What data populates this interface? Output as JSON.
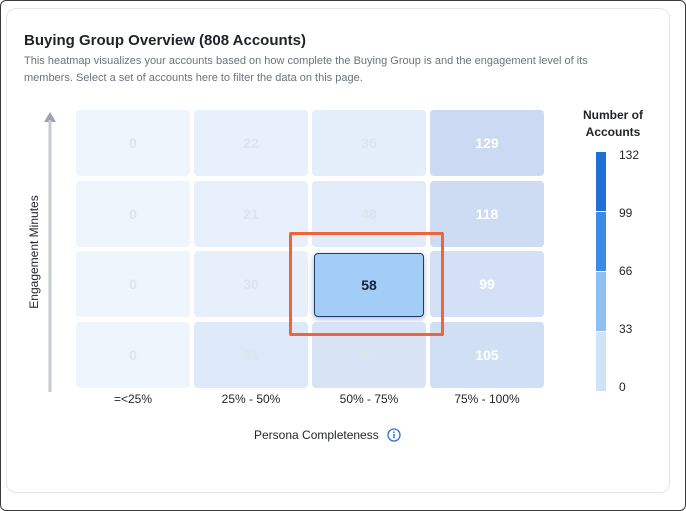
{
  "card": {
    "title": "Buying Group Overview (808 Accounts)",
    "description": "This heatmap visualizes your accounts based on how complete the Buying Group is and the engagement level of its members. Select a set of accounts here to filter the data on this page."
  },
  "chart_data": {
    "type": "heatmap",
    "xlabel": "Persona Completeness",
    "ylabel": "Engagement Minutes",
    "x_categories": [
      "=<25%",
      "25% - 50%",
      "50% - 75%",
      "75% - 100%"
    ],
    "rows": [
      [
        0,
        22,
        36,
        129
      ],
      [
        0,
        21,
        48,
        118
      ],
      [
        0,
        30,
        58,
        99
      ],
      [
        0,
        61,
        81,
        105
      ]
    ],
    "selected": {
      "row": 2,
      "col": 2
    },
    "legend": {
      "title": "Number of Accounts",
      "ticks": [
        "132",
        "99",
        "66",
        "33",
        "0"
      ],
      "colors": [
        "#1f6fd6",
        "#3d8ae6",
        "#8ebff2",
        "#cfe3f8"
      ]
    },
    "colors": {
      "cell_low": "#eef5fd",
      "cell_high": "#cad9f2",
      "text_muted": "#dce5ee",
      "selected_fill": "#a3cdf7",
      "selected_text": "#14233a",
      "highlight": "#f0643c"
    }
  }
}
